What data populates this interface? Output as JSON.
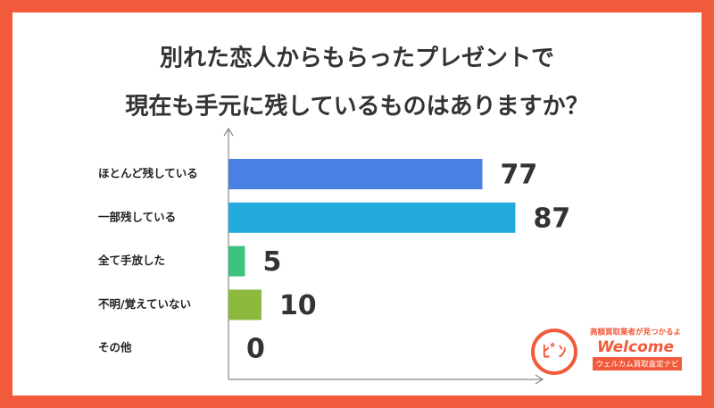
{
  "chart_data": {
    "type": "hbar",
    "title": [
      "別れた恋人からもらったプレゼントで",
      "現在も手元に残しているものはありますか？"
    ],
    "categories": [
      "ほとんど残している",
      "一部残している",
      "全て手放した",
      "不明/覚えていない",
      "その他"
    ],
    "values": [
      77,
      87,
      5,
      10,
      0
    ],
    "colors": [
      "#4a80e3",
      "#23aadc",
      "#3cc47e",
      "#8cb93d",
      "#999999"
    ],
    "xlim": [
      0,
      95
    ]
  },
  "logo": {
    "tagline": "高額買取業者が見つかるよ",
    "name": "Welcome",
    "subtitle": "ウェルカム買取査定ナビ"
  }
}
